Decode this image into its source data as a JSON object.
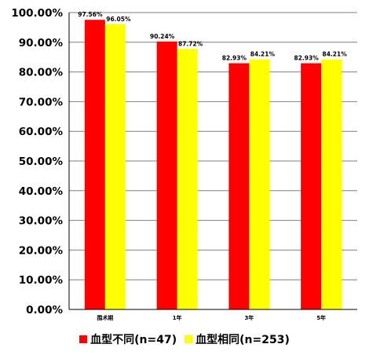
{
  "chart_data": {
    "type": "bar",
    "categories": [
      "围术期",
      "1年",
      "3年",
      "5年"
    ],
    "series": [
      {
        "name": "血型不同(n=47)",
        "values": [
          97.56,
          90.24,
          82.93,
          82.93
        ],
        "labels": [
          "97.56%",
          "90.24%",
          "82.93%",
          "82.93%"
        ],
        "color": "#ff0000"
      },
      {
        "name": "血型相同(n=253)",
        "values": [
          96.05,
          87.72,
          84.21,
          84.21
        ],
        "labels": [
          "96.05%",
          "87.72%",
          "84.21%",
          "84.21%"
        ],
        "color": "#ffff00"
      }
    ],
    "yticks": [
      "0.00%",
      "10.00%",
      "20.00%",
      "30.00%",
      "40.00%",
      "50.00%",
      "60.00%",
      "70.00%",
      "80.00%",
      "90.00%",
      "100.00%"
    ],
    "ylim": [
      0,
      100
    ],
    "grid": true,
    "legend": "bottom"
  }
}
